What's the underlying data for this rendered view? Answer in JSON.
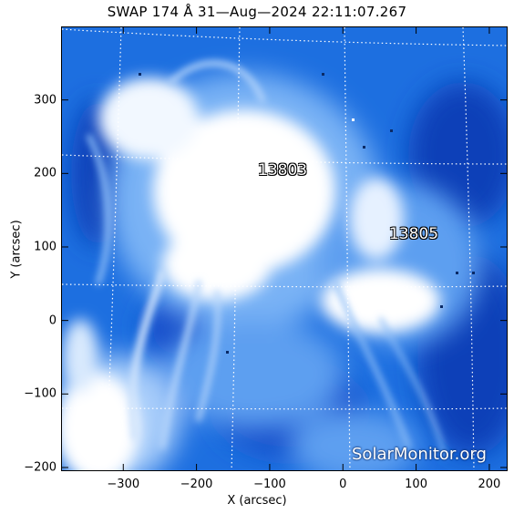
{
  "title": "SWAP 174 Å 31—Aug—2024 22:11:07.267",
  "axes": {
    "xlabel": "X (arcsec)",
    "ylabel": "Y (arcsec)",
    "xlim": [
      -385,
      225
    ],
    "ylim": [
      -205,
      400
    ],
    "xticks": [
      -300,
      -200,
      -100,
      0,
      100,
      200
    ],
    "yticks": [
      -200,
      -100,
      0,
      100,
      200,
      300
    ],
    "xtick_labels": [
      "−300",
      "−200",
      "−100",
      "0",
      "100",
      "200"
    ],
    "ytick_labels": [
      "−200",
      "−100",
      "0",
      "100",
      "200",
      "300"
    ]
  },
  "active_regions": [
    {
      "label": "13803",
      "x": -65,
      "y": 205
    },
    {
      "label": "13805",
      "x": 100,
      "y": 120
    }
  ],
  "watermark": "SolarMonitor.org",
  "colors": {
    "deep": "#0b3fb8",
    "mid": "#1d6fe0",
    "light": "#79b2f5",
    "bright": "#ffffff"
  }
}
